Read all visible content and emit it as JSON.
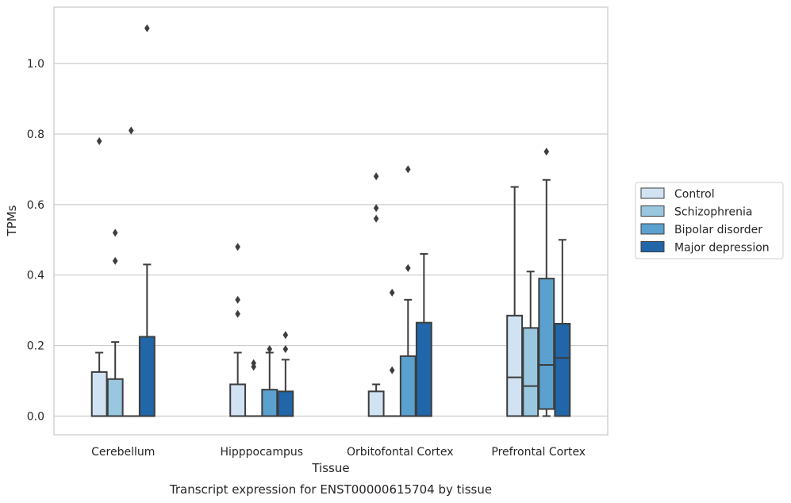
{
  "chart_data": {
    "type": "box",
    "xlabel": "Tissue",
    "ylabel": "TPMs",
    "caption": "Transcript expression for ENST00000615704 by tissue",
    "ylim": [
      -0.053,
      1.16
    ],
    "yticks": [
      "0.0",
      "0.2",
      "0.4",
      "0.6",
      "0.8",
      "1.0"
    ],
    "grid": "horizontal",
    "legend_position": "right",
    "categories": [
      "Cerebellum",
      "Hipppocampus",
      "Orbitofontal Cortex",
      "Prefrontal Cortex"
    ],
    "series": [
      {
        "name": "Control",
        "color": "#d1e2f2",
        "boxes": [
          {
            "q1": 0.0,
            "median": 0.0,
            "q3": 0.125,
            "whislo": 0.0,
            "whishi": 0.18,
            "fliers": [
              0.78
            ]
          },
          {
            "q1": 0.0,
            "median": 0.0,
            "q3": 0.09,
            "whislo": 0.0,
            "whishi": 0.18,
            "fliers": [
              0.29,
              0.33,
              0.48
            ]
          },
          {
            "q1": 0.0,
            "median": 0.0,
            "q3": 0.07,
            "whislo": 0.0,
            "whishi": 0.09,
            "fliers": [
              0.56,
              0.59,
              0.68
            ]
          },
          {
            "q1": 0.0,
            "median": 0.11,
            "q3": 0.285,
            "whislo": 0.0,
            "whishi": 0.65,
            "fliers": []
          }
        ]
      },
      {
        "name": "Schizophrenia",
        "color": "#9ac7e0",
        "boxes": [
          {
            "q1": 0.0,
            "median": 0.0,
            "q3": 0.105,
            "whislo": 0.0,
            "whishi": 0.21,
            "fliers": [
              0.44,
              0.52
            ]
          },
          {
            "q1": 0.0,
            "median": 0.0,
            "q3": 0.0,
            "whislo": 0.0,
            "whishi": 0.0,
            "fliers": [
              0.14,
              0.15
            ]
          },
          {
            "q1": 0.0,
            "median": 0.0,
            "q3": 0.0,
            "whislo": 0.0,
            "whishi": 0.0,
            "fliers": [
              0.13,
              0.35
            ]
          },
          {
            "q1": 0.0,
            "median": 0.085,
            "q3": 0.25,
            "whislo": 0.0,
            "whishi": 0.41,
            "fliers": []
          }
        ]
      },
      {
        "name": "Bipolar disorder",
        "color": "#5ba1cf",
        "boxes": [
          {
            "q1": 0.0,
            "median": 0.0,
            "q3": 0.0,
            "whislo": 0.0,
            "whishi": 0.0,
            "fliers": [
              0.81
            ]
          },
          {
            "q1": 0.0,
            "median": 0.0,
            "q3": 0.075,
            "whislo": 0.0,
            "whishi": 0.18,
            "fliers": [
              0.19
            ]
          },
          {
            "q1": 0.0,
            "median": 0.0,
            "q3": 0.17,
            "whislo": 0.0,
            "whishi": 0.33,
            "fliers": [
              0.42,
              0.7
            ]
          },
          {
            "q1": 0.02,
            "median": 0.145,
            "q3": 0.39,
            "whislo": 0.0,
            "whishi": 0.67,
            "fliers": [
              0.75
            ]
          }
        ]
      },
      {
        "name": "Major depression",
        "color": "#2066a8",
        "boxes": [
          {
            "q1": 0.0,
            "median": 0.0,
            "q3": 0.225,
            "whislo": 0.0,
            "whishi": 0.43,
            "fliers": [
              1.1
            ]
          },
          {
            "q1": 0.0,
            "median": 0.0,
            "q3": 0.07,
            "whislo": 0.0,
            "whishi": 0.16,
            "fliers": [
              0.19,
              0.23
            ]
          },
          {
            "q1": 0.0,
            "median": 0.0,
            "q3": 0.265,
            "whislo": 0.0,
            "whishi": 0.46,
            "fliers": []
          },
          {
            "q1": 0.0,
            "median": 0.165,
            "q3": 0.262,
            "whislo": 0.0,
            "whishi": 0.5,
            "fliers": []
          }
        ]
      }
    ]
  }
}
